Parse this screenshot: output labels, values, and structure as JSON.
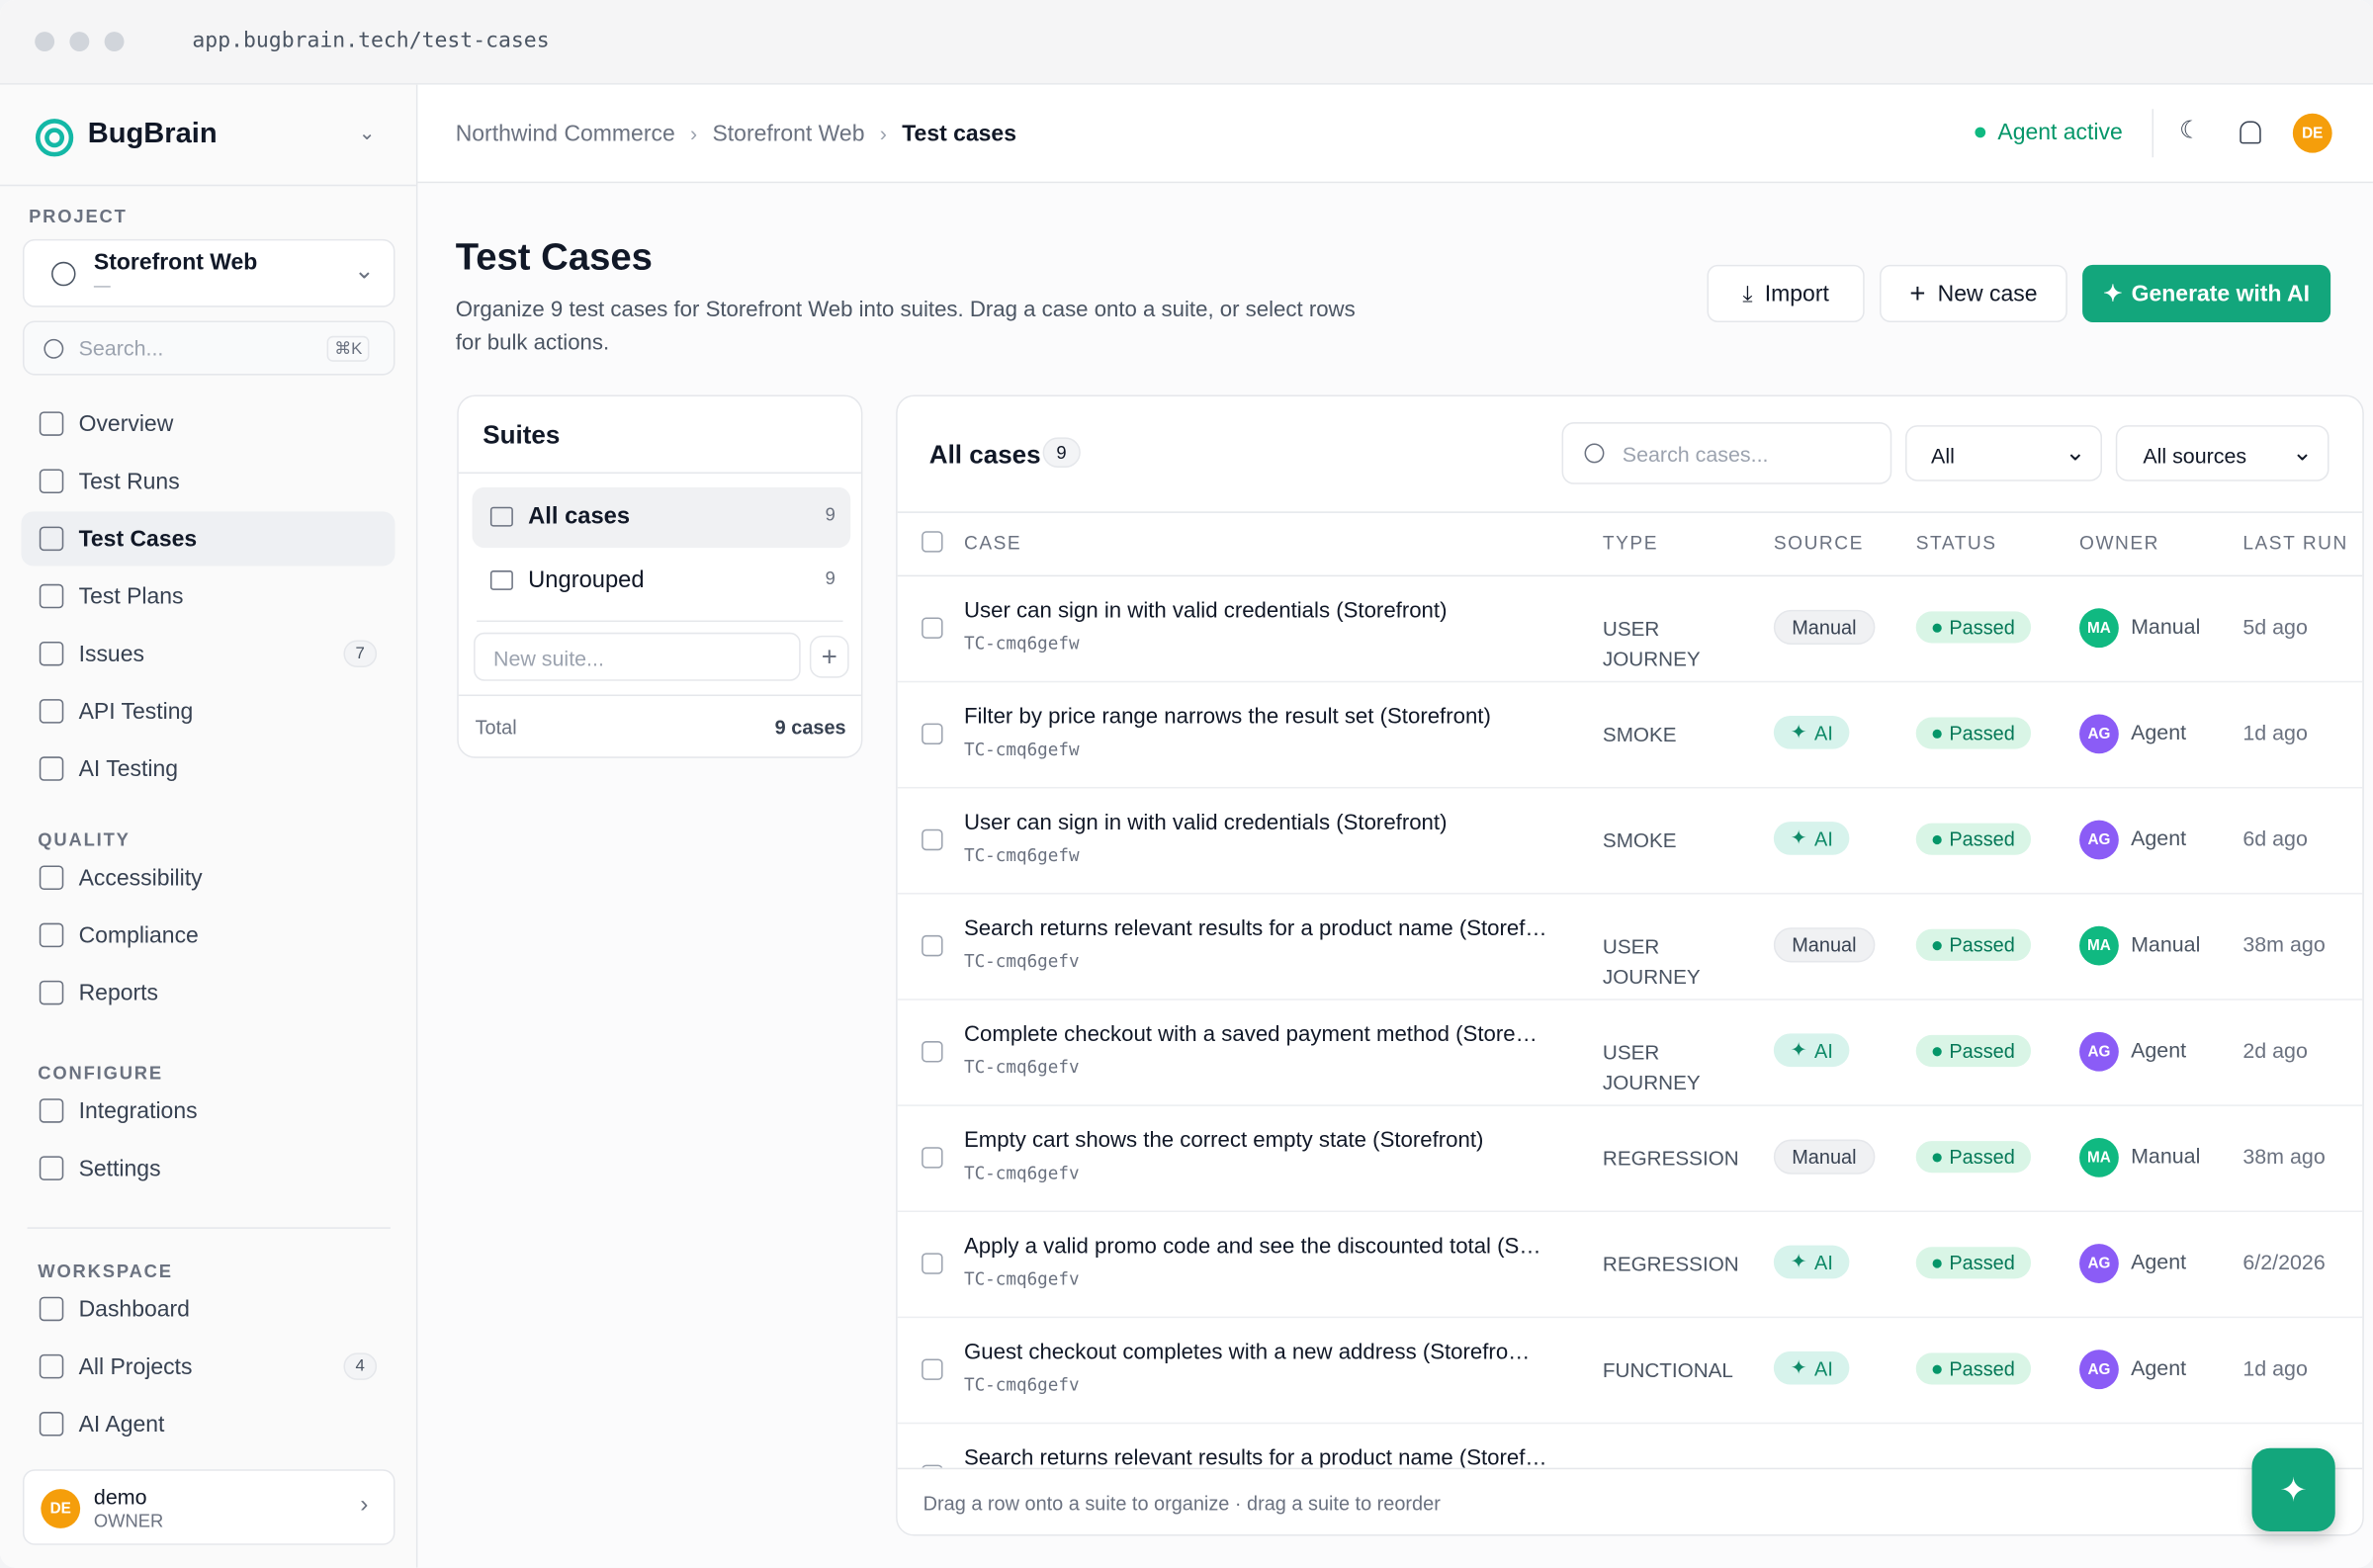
{
  "browser": {
    "url": "app.bugbrain.tech/test-cases"
  },
  "sidebar": {
    "brand": "BugBrain",
    "project_label": "PROJECT",
    "project": {
      "name": "Storefront Web",
      "sub": "—"
    },
    "search": {
      "placeholder": "Search...",
      "shortcut": "⌘K"
    },
    "nav": [
      {
        "label": "Overview"
      },
      {
        "label": "Test Runs"
      },
      {
        "label": "Test Cases",
        "active": true
      },
      {
        "label": "Test Plans"
      },
      {
        "label": "Issues",
        "badge": "7"
      },
      {
        "label": "API Testing"
      },
      {
        "label": "AI Testing"
      }
    ],
    "sections": [
      {
        "title": "QUALITY",
        "items": [
          {
            "label": "Accessibility"
          },
          {
            "label": "Compliance"
          },
          {
            "label": "Reports"
          }
        ]
      },
      {
        "title": "CONFIGURE",
        "items": [
          {
            "label": "Integrations"
          },
          {
            "label": "Settings"
          }
        ]
      },
      {
        "title": "WORKSPACE",
        "items": [
          {
            "label": "Dashboard"
          },
          {
            "label": "All Projects",
            "badge": "4"
          },
          {
            "label": "AI Agent"
          }
        ]
      }
    ],
    "user": {
      "initials": "DE",
      "name": "demo",
      "role": "OWNER"
    }
  },
  "header": {
    "breadcrumb": [
      "Northwind Commerce",
      "Storefront Web",
      "Test cases"
    ],
    "status": "Agent active",
    "avatar": "DE"
  },
  "page": {
    "title": "Test Cases",
    "description": "Organize 9 test cases for Storefront Web into suites. Drag a case onto a suite, or select rows for bulk actions.",
    "buttons": [
      "Import",
      "New case",
      "Generate with AI"
    ]
  },
  "suites": {
    "title": "Suites",
    "items": [
      {
        "name": "All cases",
        "count": "9",
        "active": true
      },
      {
        "name": "Ungrouped",
        "count": "9"
      }
    ],
    "placeholder": "New suite...",
    "total_label": "Total",
    "total_value": "9 cases"
  },
  "cases": {
    "title": "All cases",
    "count": "9",
    "search_placeholder": "Search cases...",
    "filters": [
      "All",
      "All sources"
    ],
    "columns": [
      "CASE",
      "TYPE",
      "SOURCE",
      "STATUS",
      "OWNER",
      "LAST RUN"
    ],
    "rows": [
      {
        "title": "User can sign in with valid credentials (Storefront)",
        "id": "TC-cmq6gefw",
        "type": "USER JOURNEY",
        "source": "Manual",
        "status": "Passed",
        "owner_initials": "MA",
        "owner": "Manual",
        "last_run": "5d ago"
      },
      {
        "title": "Filter by price range narrows the result set (Storefront)",
        "id": "TC-cmq6gefw",
        "type": "SMOKE",
        "source": "AI",
        "status": "Passed",
        "owner_initials": "AG",
        "owner": "Agent",
        "last_run": "1d ago"
      },
      {
        "title": "User can sign in with valid credentials (Storefront)",
        "id": "TC-cmq6gefw",
        "type": "SMOKE",
        "source": "AI",
        "status": "Passed",
        "owner_initials": "AG",
        "owner": "Agent",
        "last_run": "6d ago"
      },
      {
        "title": "Search returns relevant results for a product name (Storef…",
        "id": "TC-cmq6gefv",
        "type": "USER JOURNEY",
        "source": "Manual",
        "status": "Passed",
        "owner_initials": "MA",
        "owner": "Manual",
        "last_run": "38m ago"
      },
      {
        "title": "Complete checkout with a saved payment method (Store…",
        "id": "TC-cmq6gefv",
        "type": "USER JOURNEY",
        "source": "AI",
        "status": "Passed",
        "owner_initials": "AG",
        "owner": "Agent",
        "last_run": "2d ago"
      },
      {
        "title": "Empty cart shows the correct empty state (Storefront)",
        "id": "TC-cmq6gefv",
        "type": "REGRESSION",
        "source": "Manual",
        "status": "Passed",
        "owner_initials": "MA",
        "owner": "Manual",
        "last_run": "38m ago"
      },
      {
        "title": "Apply a valid promo code and see the discounted total (S…",
        "id": "TC-cmq6gefv",
        "type": "REGRESSION",
        "source": "AI",
        "status": "Passed",
        "owner_initials": "AG",
        "owner": "Agent",
        "last_run": "6/2/2026"
      },
      {
        "title": "Guest checkout completes with a new address (Storefro…",
        "id": "TC-cmq6gefv",
        "type": "FUNCTIONAL",
        "source": "AI",
        "status": "Passed",
        "owner_initials": "AG",
        "owner": "Agent",
        "last_run": "1d ago"
      },
      {
        "title": "Search returns relevant results for a product name (Storef…"
      }
    ],
    "footer": "Drag a row onto a suite to organize · drag a suite to reorder"
  }
}
